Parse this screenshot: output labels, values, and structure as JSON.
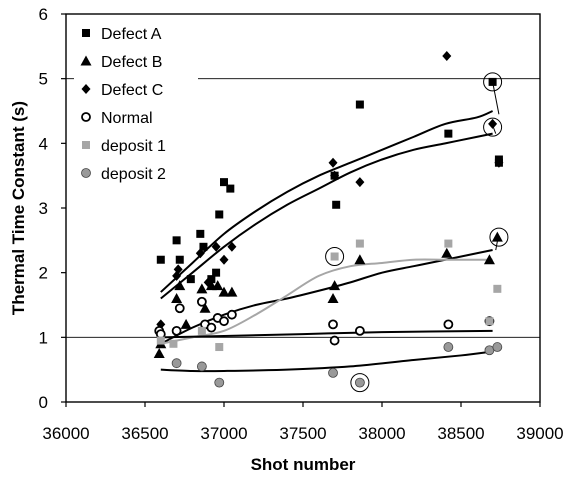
{
  "chart_data": {
    "type": "scatter",
    "xlabel": "Shot number",
    "ylabel": "Thermal Time Constant (s)",
    "xlim": [
      36000,
      39000
    ],
    "ylim": [
      0,
      6
    ],
    "x_ticks": [
      36000,
      36500,
      37000,
      37500,
      38000,
      38500,
      39000
    ],
    "y_ticks": [
      0,
      1,
      2,
      3,
      4,
      5,
      6
    ],
    "reference_lines_y": [
      1,
      5
    ],
    "legend_position": "top-left",
    "series": [
      {
        "name": "Defect A",
        "marker": "square",
        "color": "#000000",
        "points": [
          [
            36600,
            2.2
          ],
          [
            36700,
            2.5
          ],
          [
            36720,
            2.2
          ],
          [
            36790,
            1.9
          ],
          [
            36850,
            2.6
          ],
          [
            36870,
            2.4
          ],
          [
            36920,
            1.9
          ],
          [
            36950,
            2.0
          ],
          [
            36970,
            2.9
          ],
          [
            37000,
            3.4
          ],
          [
            37040,
            3.3
          ],
          [
            37700,
            3.5
          ],
          [
            37710,
            3.05
          ],
          [
            37860,
            4.6
          ],
          [
            38420,
            4.15
          ],
          [
            38700,
            4.95
          ],
          [
            38740,
            3.7
          ],
          [
            38740,
            3.75
          ]
        ]
      },
      {
        "name": "Defect B",
        "marker": "triangle",
        "color": "#000000",
        "points": [
          [
            36590,
            0.75
          ],
          [
            36600,
            0.9
          ],
          [
            36700,
            1.6
          ],
          [
            36720,
            1.8
          ],
          [
            36760,
            1.2
          ],
          [
            36860,
            1.75
          ],
          [
            36880,
            1.45
          ],
          [
            36920,
            1.8
          ],
          [
            36960,
            1.8
          ],
          [
            37000,
            1.7
          ],
          [
            37050,
            1.7
          ],
          [
            37690,
            1.6
          ],
          [
            37700,
            1.8
          ],
          [
            37860,
            2.2
          ],
          [
            38410,
            2.3
          ],
          [
            38680,
            2.2
          ],
          [
            38730,
            2.55
          ]
        ]
      },
      {
        "name": "Defect C",
        "marker": "diamond",
        "color": "#000000",
        "points": [
          [
            36600,
            1.2
          ],
          [
            36700,
            1.95
          ],
          [
            36710,
            2.05
          ],
          [
            36850,
            2.3
          ],
          [
            36900,
            1.85
          ],
          [
            36950,
            2.4
          ],
          [
            37000,
            2.2
          ],
          [
            37050,
            2.4
          ],
          [
            37690,
            3.7
          ],
          [
            37700,
            3.5
          ],
          [
            37860,
            3.4
          ],
          [
            38410,
            5.35
          ],
          [
            38700,
            4.3
          ],
          [
            38740,
            3.7
          ]
        ]
      },
      {
        "name": "Normal",
        "marker": "open-circle",
        "color": "#000000",
        "points": [
          [
            36590,
            1.1
          ],
          [
            36600,
            1.05
          ],
          [
            36700,
            1.1
          ],
          [
            36720,
            1.45
          ],
          [
            36860,
            1.55
          ],
          [
            36880,
            1.2
          ],
          [
            36920,
            1.15
          ],
          [
            36960,
            1.3
          ],
          [
            37000,
            1.25
          ],
          [
            37050,
            1.35
          ],
          [
            37690,
            1.2
          ],
          [
            37700,
            0.95
          ],
          [
            37860,
            1.1
          ],
          [
            38420,
            1.2
          ],
          [
            38680,
            1.25
          ]
        ]
      },
      {
        "name": "deposit 1",
        "marker": "square",
        "color": "#a6a6a6",
        "points": [
          [
            36600,
            0.95
          ],
          [
            36680,
            0.9
          ],
          [
            36860,
            1.1
          ],
          [
            36970,
            0.85
          ],
          [
            37700,
            2.25
          ],
          [
            37860,
            2.45
          ],
          [
            38420,
            2.45
          ],
          [
            38680,
            1.25
          ],
          [
            38730,
            1.75
          ]
        ]
      },
      {
        "name": "deposit 2",
        "marker": "filled-circle",
        "color": "#999999",
        "points": [
          [
            36700,
            0.6
          ],
          [
            36860,
            0.55
          ],
          [
            36970,
            0.3
          ],
          [
            37690,
            0.45
          ],
          [
            37860,
            0.3
          ],
          [
            38420,
            0.85
          ],
          [
            38680,
            0.8
          ],
          [
            38730,
            0.85
          ]
        ]
      }
    ],
    "trend_lines": [
      {
        "series": "Defect A",
        "color": "#000000",
        "points": [
          [
            36600,
            1.7
          ],
          [
            36800,
            2.15
          ],
          [
            37000,
            2.6
          ],
          [
            37200,
            2.95
          ],
          [
            37400,
            3.25
          ],
          [
            37600,
            3.5
          ],
          [
            37800,
            3.7
          ],
          [
            38000,
            3.9
          ],
          [
            38200,
            4.1
          ],
          [
            38400,
            4.3
          ],
          [
            38600,
            4.4
          ],
          [
            38700,
            4.5
          ]
        ]
      },
      {
        "series": "Defect C",
        "color": "#000000",
        "points": [
          [
            36600,
            1.6
          ],
          [
            36800,
            2.0
          ],
          [
            37000,
            2.4
          ],
          [
            37200,
            2.75
          ],
          [
            37400,
            3.05
          ],
          [
            37600,
            3.3
          ],
          [
            37800,
            3.55
          ],
          [
            38000,
            3.75
          ],
          [
            38200,
            3.9
          ],
          [
            38400,
            4.0
          ],
          [
            38600,
            4.1
          ],
          [
            38700,
            4.15
          ]
        ]
      },
      {
        "series": "Defect B",
        "color": "#000000",
        "points": [
          [
            36600,
            0.9
          ],
          [
            36800,
            1.15
          ],
          [
            37000,
            1.35
          ],
          [
            37200,
            1.5
          ],
          [
            37400,
            1.6
          ],
          [
            37600,
            1.72
          ],
          [
            37800,
            1.85
          ],
          [
            38000,
            2.0
          ],
          [
            38200,
            2.1
          ],
          [
            38400,
            2.2
          ],
          [
            38600,
            2.3
          ],
          [
            38700,
            2.35
          ]
        ]
      },
      {
        "series": "deposit 1",
        "color": "#a6a6a6",
        "points": [
          [
            36600,
            0.9
          ],
          [
            36800,
            1.0
          ],
          [
            37000,
            1.1
          ],
          [
            37200,
            1.35
          ],
          [
            37400,
            1.65
          ],
          [
            37600,
            1.95
          ],
          [
            37800,
            2.1
          ],
          [
            38000,
            2.15
          ],
          [
            38200,
            2.2
          ],
          [
            38400,
            2.2
          ],
          [
            38600,
            2.2
          ],
          [
            38700,
            2.2
          ]
        ]
      },
      {
        "series": "Normal",
        "color": "#000000",
        "points": [
          [
            36600,
            1.0
          ],
          [
            37000,
            1.02
          ],
          [
            37500,
            1.05
          ],
          [
            38000,
            1.08
          ],
          [
            38700,
            1.1
          ]
        ]
      },
      {
        "series": "deposit 2",
        "color": "#000000",
        "points": [
          [
            36600,
            0.5
          ],
          [
            36800,
            0.48
          ],
          [
            37000,
            0.48
          ],
          [
            37400,
            0.5
          ],
          [
            37800,
            0.55
          ],
          [
            38200,
            0.65
          ],
          [
            38500,
            0.72
          ],
          [
            38700,
            0.78
          ]
        ]
      }
    ],
    "highlighted_points": [
      [
        37700,
        2.25
      ],
      [
        37860,
        0.3
      ],
      [
        38700,
        4.95
      ],
      [
        38700,
        4.25
      ],
      [
        38740,
        2.55
      ]
    ],
    "callouts": [
      {
        "from": [
          38740,
          4.45
        ],
        "to": [
          38700,
          4.95
        ]
      },
      {
        "from": [
          38720,
          4.15
        ],
        "to": [
          38700,
          4.28
        ]
      },
      {
        "from": [
          38720,
          2.35
        ],
        "to": [
          38735,
          2.55
        ]
      }
    ]
  }
}
